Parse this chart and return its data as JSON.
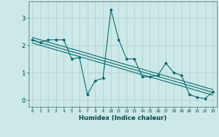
{
  "title": "",
  "xlabel": "Humidex (Indice chaleur)",
  "ylabel": "",
  "bg_color": "#cce8e8",
  "line_color": "#006666",
  "grid_color": "#aacccc",
  "x_data": [
    0,
    1,
    2,
    3,
    4,
    5,
    6,
    7,
    8,
    9,
    10,
    11,
    12,
    13,
    14,
    15,
    16,
    17,
    18,
    19,
    20,
    21,
    22,
    23
  ],
  "y_scatter": [
    2.2,
    2.1,
    2.2,
    2.2,
    2.2,
    1.5,
    1.55,
    0.2,
    0.7,
    0.8,
    3.3,
    2.2,
    1.5,
    1.5,
    0.85,
    0.85,
    0.9,
    1.35,
    1.0,
    0.9,
    0.2,
    0.1,
    0.05,
    0.3
  ],
  "ylim": [
    -0.25,
    3.6
  ],
  "xlim": [
    -0.5,
    23.5
  ],
  "yticks": [
    0,
    1,
    2,
    3
  ],
  "xticks": [
    0,
    1,
    2,
    3,
    4,
    5,
    6,
    7,
    8,
    9,
    10,
    11,
    12,
    13,
    14,
    15,
    16,
    17,
    18,
    19,
    20,
    21,
    22,
    23
  ],
  "trend1_x": [
    0,
    23
  ],
  "trend1_y": [
    2.18,
    0.28
  ],
  "trend2_x": [
    0,
    23
  ],
  "trend2_y": [
    2.08,
    0.18
  ],
  "trend3_x": [
    0,
    23
  ],
  "trend3_y": [
    2.28,
    0.38
  ]
}
